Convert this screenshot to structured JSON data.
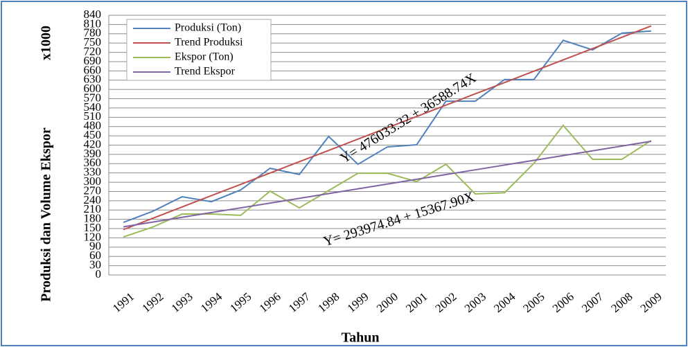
{
  "chart_data": {
    "type": "line",
    "x_label": "Tahun",
    "y_label": "Produksi dan Volume Ekspor",
    "y_unit": "x1000",
    "annotations": [
      "Y= 476033.32 + 36588.74X",
      "Y= 293974.84 + 15367.90X"
    ],
    "categories": [
      "1991",
      "1992",
      "1993",
      "1994",
      "1995",
      "1996",
      "1997",
      "1998",
      "1999",
      "2000",
      "2001",
      "2002",
      "2003",
      "2004",
      "2005",
      "2006",
      "2007",
      "2008",
      "2009"
    ],
    "series": [
      {
        "name": "Produksi (Ton)",
        "color": "#4f81bd",
        "values": [
          170,
          206,
          253,
          237,
          275,
          345,
          325,
          448,
          358,
          414,
          421,
          562,
          562,
          632,
          632,
          759,
          728,
          782,
          789
        ]
      },
      {
        "name": "Trend Produksi",
        "color": "#c0504d",
        "values": [
          146.73,
          183.32,
          219.91,
          256.5,
          293.09,
          329.68,
          366.27,
          402.86,
          439.44,
          476.03,
          512.62,
          549.21,
          585.8,
          622.39,
          658.98,
          695.57,
          732.15,
          768.74,
          805.33
        ]
      },
      {
        "name": "Ekspor (Ton)",
        "color": "#9bbb59",
        "values": [
          123,
          155,
          197,
          197,
          193,
          271,
          217,
          273,
          329,
          329,
          302,
          358,
          262,
          266,
          361,
          484,
          374,
          374,
          435
        ]
      },
      {
        "name": "Trend Ekspor",
        "color": "#8064a2",
        "values": [
          155.66,
          171.03,
          186.4,
          201.77,
          217.14,
          232.5,
          247.87,
          263.24,
          278.61,
          293.97,
          309.34,
          324.71,
          340.08,
          355.45,
          370.81,
          386.18,
          401.55,
          416.92,
          432.29
        ]
      }
    ],
    "ylim": [
      0,
      840
    ],
    "yticks": [
      0,
      30,
      60,
      90,
      120,
      150,
      180,
      210,
      240,
      270,
      300,
      330,
      360,
      390,
      420,
      450,
      480,
      510,
      540,
      570,
      600,
      630,
      660,
      690,
      720,
      750,
      780,
      810,
      840
    ],
    "grid": true,
    "legend": "upper left"
  }
}
